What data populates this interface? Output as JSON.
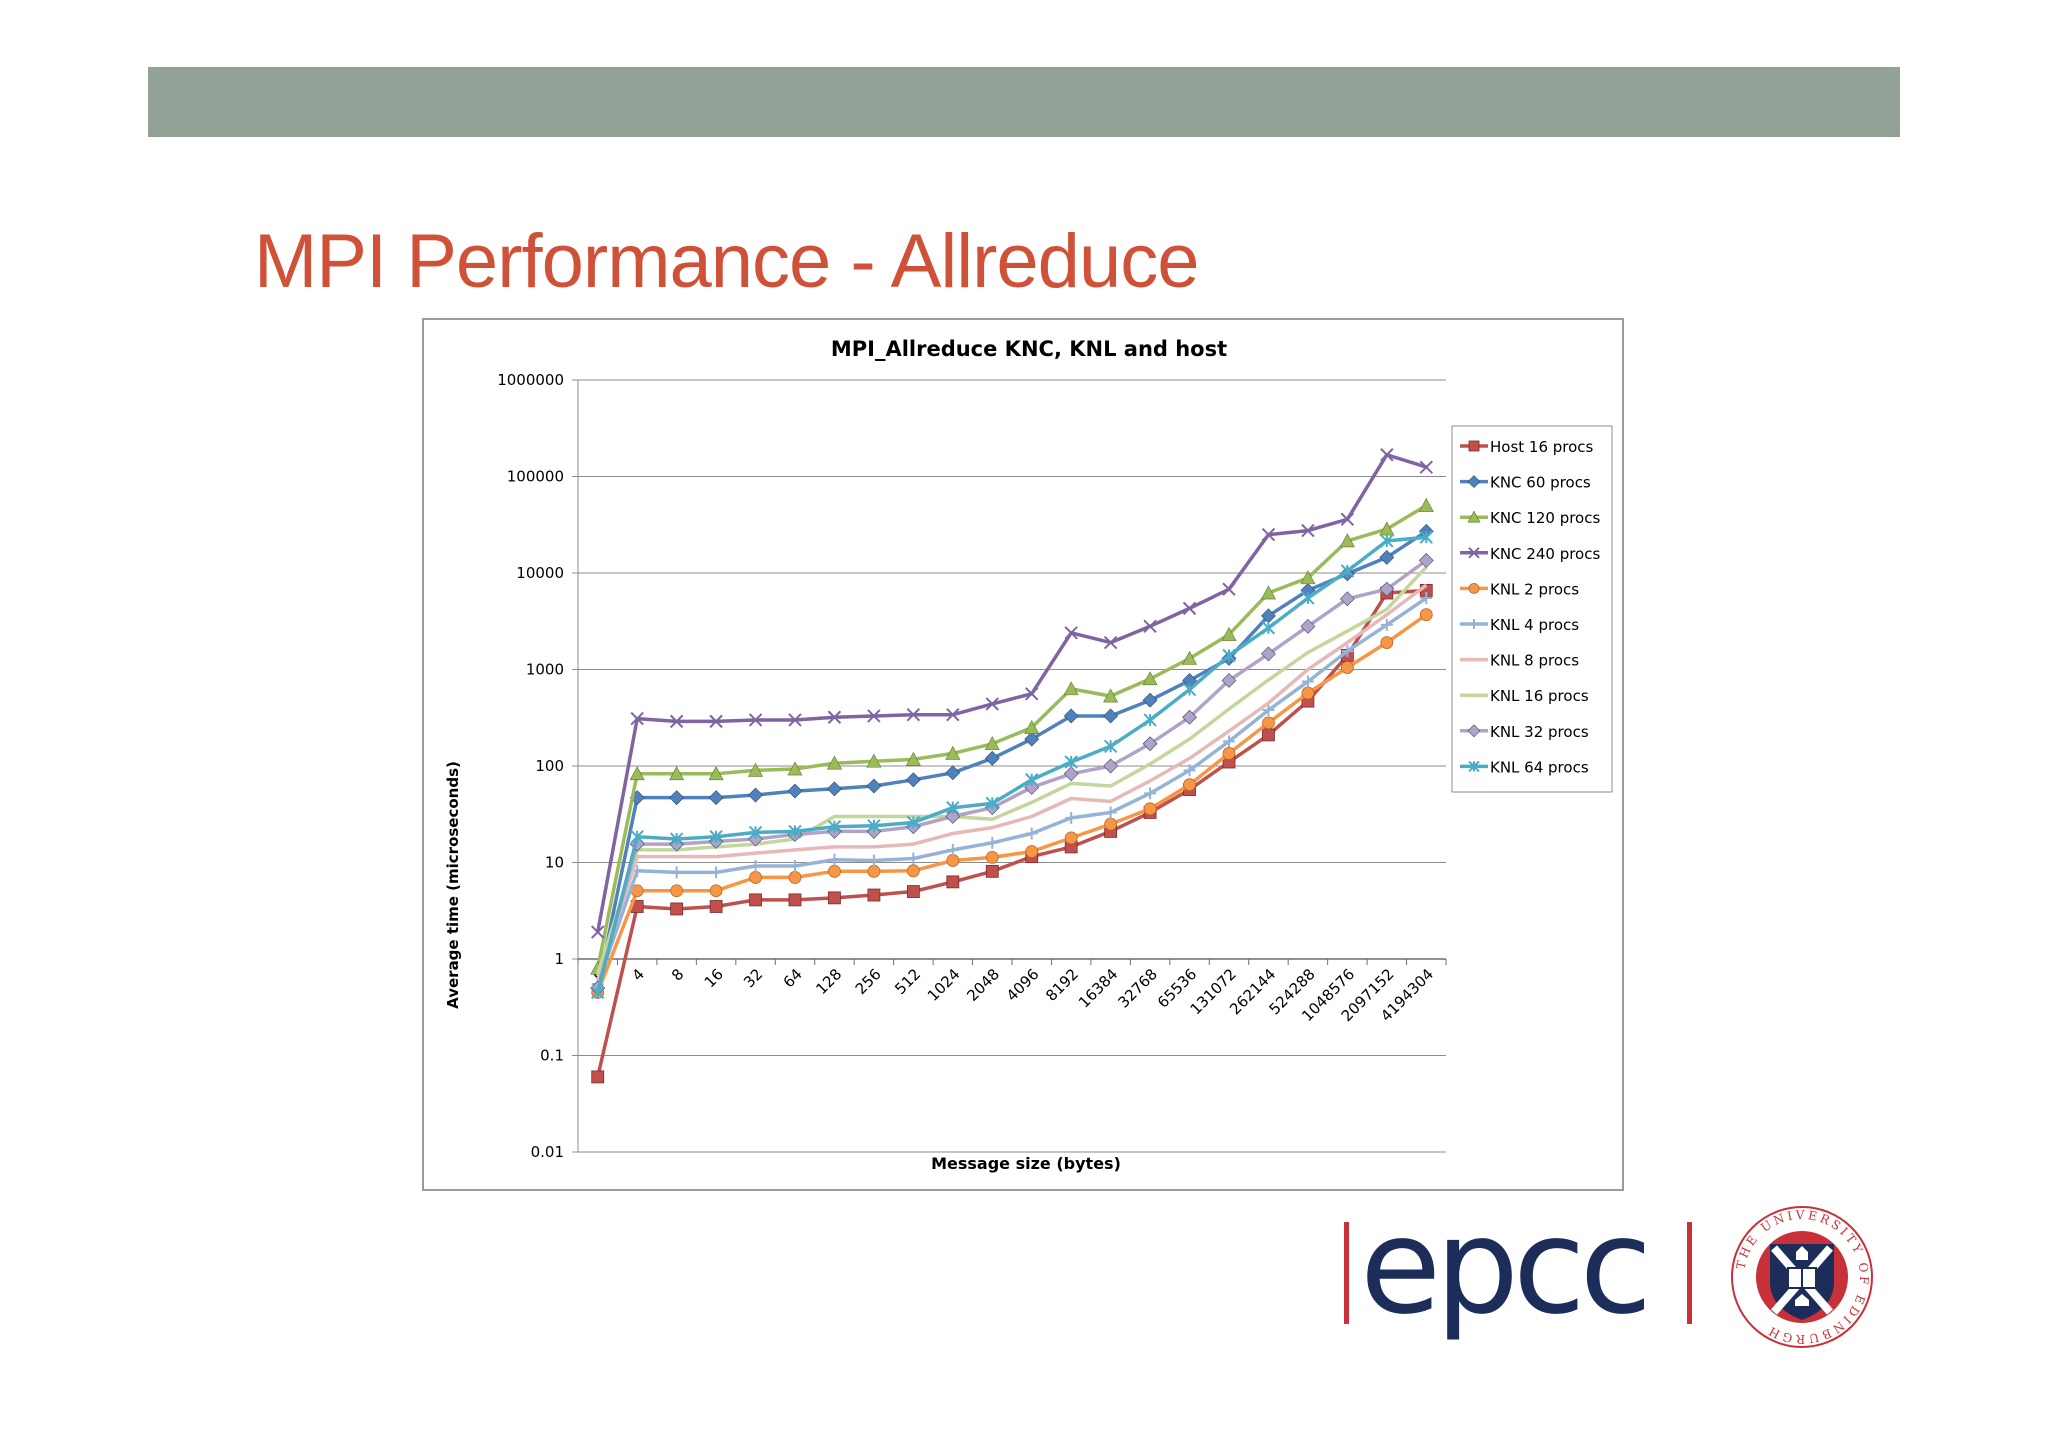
{
  "slide": {
    "title": "MPI Performance - Allreduce"
  },
  "logos": {
    "epcc_text": "epcc",
    "university_seal_text": "THE UNIVERSITY OF EDINBURGH"
  },
  "colors": {
    "band": "#93a297",
    "title": "#cf5138",
    "epcc": "#1c2d5a",
    "seal_red": "#c8313a",
    "seal_navy": "#1c2d5a"
  },
  "chart_data": {
    "type": "line",
    "title": "MPI_Allreduce KNC, KNL and host",
    "xlabel": "Message size (bytes)",
    "ylabel": "Average time (microseconds)",
    "y_scale": "log",
    "ylim": [
      0.01,
      1000000
    ],
    "y_ticks": [
      "0.01",
      "0.1",
      "1",
      "10",
      "100",
      "1000",
      "10000",
      "100000",
      "1000000"
    ],
    "grid": true,
    "legend_position": "right",
    "categories": [
      "0",
      "4",
      "8",
      "16",
      "32",
      "64",
      "128",
      "256",
      "512",
      "1024",
      "2048",
      "4096",
      "8192",
      "16384",
      "32768",
      "65536",
      "131072",
      "262144",
      "524288",
      "1048576",
      "2097152",
      "4194304"
    ],
    "series": [
      {
        "name": "Host 16 procs",
        "color": "#c0504d",
        "marker": "square",
        "values": [
          0.06,
          3.5,
          3.3,
          3.5,
          4.1,
          4.1,
          4.3,
          4.6,
          5.0,
          6.3,
          8.1,
          11.5,
          14.5,
          21,
          33,
          57,
          110,
          210,
          470,
          1400,
          6200,
          6600
        ]
      },
      {
        "name": "KNC 60 procs",
        "color": "#4f81bd",
        "marker": "diamond",
        "values": [
          0.5,
          47,
          47,
          47,
          50,
          55,
          58,
          62,
          72,
          85,
          120,
          190,
          330,
          330,
          480,
          770,
          1300,
          3600,
          6600,
          9800,
          14500,
          27000
        ]
      },
      {
        "name": "KNC 120 procs",
        "color": "#9bbb59",
        "marker": "triangle",
        "values": [
          0.8,
          83,
          83,
          83,
          90,
          93,
          107,
          112,
          117,
          135,
          170,
          250,
          630,
          530,
          800,
          1300,
          2300,
          6200,
          8900,
          21500,
          28500,
          50000
        ]
      },
      {
        "name": "KNC 240 procs",
        "color": "#8064a2",
        "marker": "x",
        "values": [
          1.9,
          310,
          290,
          290,
          300,
          300,
          320,
          330,
          340,
          340,
          440,
          560,
          2400,
          1900,
          2800,
          4300,
          6800,
          25000,
          27500,
          36000,
          168000,
          125000
        ]
      },
      {
        "name": "KNL 2 procs",
        "color": "#f79646",
        "marker": "circle",
        "values": [
          0.45,
          5.1,
          5.1,
          5.1,
          7.0,
          7.0,
          8.1,
          8.1,
          8.2,
          10.5,
          11.3,
          13,
          18,
          25,
          36,
          64,
          135,
          280,
          570,
          1050,
          1900,
          3700
        ]
      },
      {
        "name": "KNL 4 procs",
        "color": "#95b3d7",
        "marker": "plus",
        "values": [
          0.55,
          8.2,
          7.9,
          7.9,
          9.2,
          9.2,
          10.7,
          10.5,
          11,
          13.5,
          16,
          20,
          29,
          33,
          52,
          90,
          180,
          380,
          750,
          1550,
          2900,
          5500
        ]
      },
      {
        "name": "KNL 8 procs",
        "color": "#e6b9b8",
        "marker": "none",
        "values": [
          0.6,
          11.5,
          11.5,
          11.5,
          12.5,
          13.5,
          14.5,
          14.5,
          15.5,
          20,
          23,
          30,
          46,
          43,
          70,
          120,
          230,
          450,
          1000,
          1900,
          3700,
          7500
        ]
      },
      {
        "name": "KNL 16 procs",
        "color": "#c3d69b",
        "marker": "none",
        "values": [
          0.7,
          13.5,
          13.5,
          14.5,
          15.5,
          17.5,
          30,
          30,
          30,
          30,
          28,
          42,
          66,
          62,
          105,
          190,
          390,
          780,
          1500,
          2500,
          4200,
          11500
        ]
      },
      {
        "name": "KNL 32 procs",
        "color": "#b3a2c7",
        "marker": "diamond",
        "values": [
          0.5,
          15.5,
          15.5,
          16.5,
          17.5,
          19.5,
          21,
          21,
          23.5,
          30,
          37,
          60,
          83,
          100,
          170,
          320,
          770,
          1450,
          2800,
          5400,
          6800,
          13500
        ]
      },
      {
        "name": "KNL 64 procs",
        "color": "#4bacc6",
        "marker": "star",
        "values": [
          0.45,
          18.5,
          17.5,
          18.5,
          20.5,
          21,
          23.5,
          24,
          26,
          37,
          41,
          72,
          110,
          160,
          300,
          620,
          1400,
          2700,
          5500,
          10500,
          21500,
          23500
        ]
      }
    ]
  }
}
